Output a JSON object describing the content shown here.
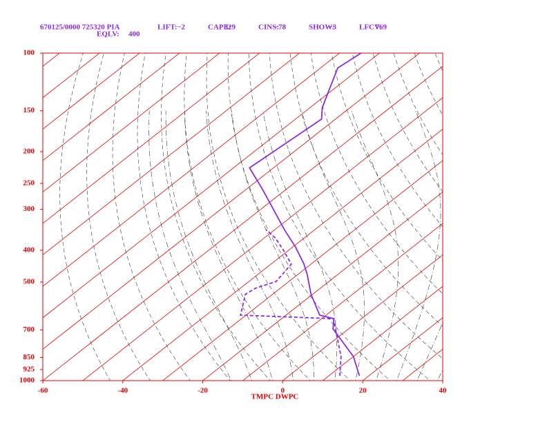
{
  "header": {
    "station": "670125/0000 725320 PIA",
    "indices": [
      {
        "label": "LIFT:",
        "value": "−2"
      },
      {
        "label": "CAPE:",
        "value": "329"
      },
      {
        "label": "CINS:",
        "value": "−78"
      },
      {
        "label": "SHOW:",
        "value": "−3"
      },
      {
        "label": "LFCV:",
        "value": "769"
      }
    ],
    "eqlv": {
      "label": "EQLV:",
      "value": "400"
    }
  },
  "chart_data": {
    "type": "skewt",
    "xlabel": "TMPC DWPC",
    "xlim": [
      -60,
      40
    ],
    "xticks": [
      -60,
      -40,
      -20,
      0,
      20,
      40
    ],
    "ylim": [
      100,
      1000
    ],
    "yticks": [
      100,
      150,
      200,
      250,
      300,
      400,
      500,
      700,
      850,
      925,
      1000
    ],
    "log_y": true,
    "isotherm_color": "#e00000",
    "temperature": {
      "color": "#8a2be2",
      "pressure": [
        966,
        844,
        695,
        647,
        631,
        545,
        472,
        439,
        391,
        346,
        261,
        224,
        159,
        147,
        129,
        111,
        100
      ],
      "values": [
        17.6,
        10.0,
        -3.9,
        -6.9,
        -11.6,
        -20.4,
        -27.9,
        -32.0,
        -39.3,
        -47.6,
        -65.8,
        -76,
        -73.5,
        -76.9,
        -81,
        -85.7,
        -84.6
      ]
    },
    "dewpoint": {
      "color": "#8a2be2",
      "pressure": [
        966,
        844,
        740,
        647,
        631,
        545,
        522,
        498,
        441,
        398,
        366,
        346
      ],
      "values": [
        12.7,
        6.9,
        0,
        -7,
        -31.4,
        -36.8,
        -36.2,
        -33.2,
        -34.9,
        -41.6,
        -47.4,
        -52.2
      ]
    }
  }
}
